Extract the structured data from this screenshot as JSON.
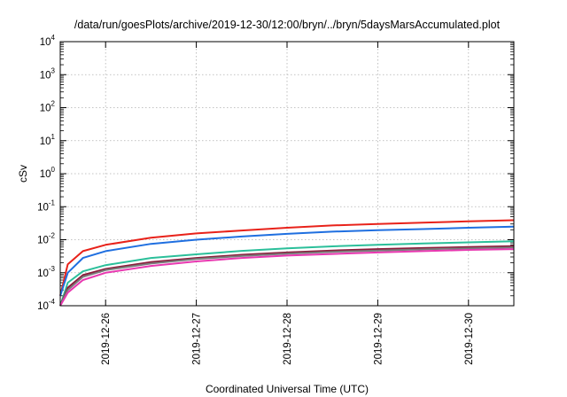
{
  "chart_data": {
    "type": "line",
    "title": "/data/run/goesPlots/archive/2019-12-30/12:00/bryn/../bryn/5daysMarsAccumulated.plot",
    "xlabel": "Coordinated Universal Time (UTC)",
    "ylabel": "cSv",
    "yscale": "log",
    "ylim": [
      0.0001,
      10000
    ],
    "xlim": [
      "2019-12-25T12:00",
      "2019-12-30T12:00"
    ],
    "grid": true,
    "legend": "none",
    "x_ticks": [
      "2019-12-26",
      "2019-12-27",
      "2019-12-28",
      "2019-12-29",
      "2019-12-30"
    ],
    "y_ticks": [
      {
        "base": "10",
        "exp": "-4",
        "value": 0.0001
      },
      {
        "base": "10",
        "exp": "-3",
        "value": 0.001
      },
      {
        "base": "10",
        "exp": "-2",
        "value": 0.01
      },
      {
        "base": "10",
        "exp": "-1",
        "value": 0.1
      },
      {
        "base": "10",
        "exp": "0",
        "value": 1
      },
      {
        "base": "10",
        "exp": "1",
        "value": 10
      },
      {
        "base": "10",
        "exp": "2",
        "value": 100
      },
      {
        "base": "10",
        "exp": "3",
        "value": 1000
      },
      {
        "base": "10",
        "exp": "4",
        "value": 10000
      }
    ],
    "x": [
      "2019-12-25T12:00",
      "2019-12-25T14:00",
      "2019-12-25T18:00",
      "2019-12-26T00:00",
      "2019-12-26T12:00",
      "2019-12-27T00:00",
      "2019-12-27T12:00",
      "2019-12-28T00:00",
      "2019-12-28T12:00",
      "2019-12-29T00:00",
      "2019-12-29T12:00",
      "2019-12-30T00:00",
      "2019-12-30T12:00"
    ],
    "series": [
      {
        "color": "#e8221a",
        "values": [
          0.0002,
          0.0018,
          0.0045,
          0.007,
          0.0115,
          0.0155,
          0.019,
          0.023,
          0.027,
          0.03,
          0.033,
          0.036,
          0.039
        ]
      },
      {
        "color": "#1f6fe0",
        "values": [
          0.0002,
          0.001,
          0.0028,
          0.0045,
          0.0075,
          0.01,
          0.0125,
          0.015,
          0.0175,
          0.0195,
          0.021,
          0.023,
          0.025
        ]
      },
      {
        "color": "#2bbf9a",
        "values": [
          0.0001,
          0.0005,
          0.0011,
          0.0017,
          0.0028,
          0.0036,
          0.0046,
          0.0055,
          0.0063,
          0.007,
          0.0077,
          0.0083,
          0.009
        ]
      },
      {
        "color": "#8b1a3a",
        "values": [
          0.0001,
          0.00035,
          0.00085,
          0.0013,
          0.0021,
          0.0028,
          0.0035,
          0.0041,
          0.0047,
          0.0052,
          0.0056,
          0.006,
          0.0064
        ]
      },
      {
        "color": "#7a7a7a",
        "values": [
          0.0001,
          0.0003,
          0.00075,
          0.0012,
          0.0019,
          0.0026,
          0.0032,
          0.0038,
          0.0043,
          0.0047,
          0.0051,
          0.0055,
          0.0058
        ]
      },
      {
        "color": "#e838b0",
        "values": [
          0.0001,
          0.00025,
          0.0006,
          0.001,
          0.0016,
          0.0022,
          0.0028,
          0.0033,
          0.0037,
          0.0041,
          0.0045,
          0.0049,
          0.0052
        ]
      }
    ]
  }
}
